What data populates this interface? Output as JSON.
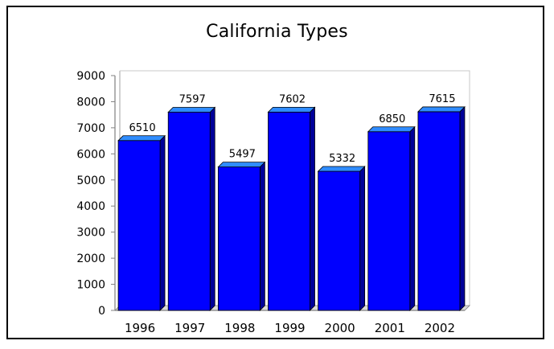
{
  "chart_data": {
    "type": "bar",
    "title": "California Types",
    "xlabel": "",
    "ylabel": "",
    "categories": [
      "1996",
      "1997",
      "1998",
      "1999",
      "2000",
      "2001",
      "2002"
    ],
    "values": [
      6510,
      7597,
      5497,
      7602,
      5332,
      6850,
      7615
    ],
    "data_labels": [
      "6510",
      "7597",
      "5497",
      "7602",
      "5332",
      "6850",
      "7615"
    ],
    "ylim": [
      0,
      9000
    ],
    "yticks": [
      "0",
      "1000",
      "2000",
      "3000",
      "4000",
      "5000",
      "6000",
      "7000",
      "8000",
      "9000"
    ],
    "grid": false,
    "legend": false,
    "three_d": true,
    "colors": {
      "bar_front": "#0000ff",
      "bar_top": "#2f8cff",
      "bar_side": "#00009a",
      "bar_outline": "#000000",
      "floor": "#d9d9d9",
      "axis": "#808080"
    }
  }
}
